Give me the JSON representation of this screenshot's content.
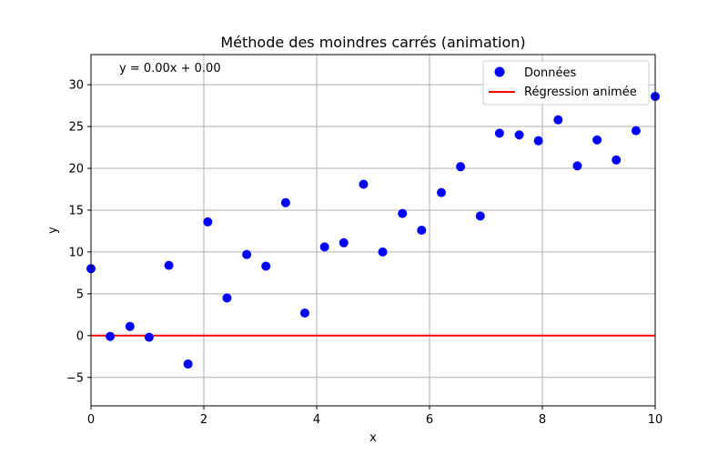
{
  "chart_data": {
    "type": "scatter",
    "title": "Méthode des moindres carrés (animation)",
    "xlabel": "x",
    "ylabel": "y",
    "xlim": [
      0,
      10
    ],
    "ylim": [
      -8.4,
      33.6
    ],
    "xticks": [
      0,
      2,
      4,
      6,
      8,
      10
    ],
    "yticks": [
      -5,
      0,
      5,
      10,
      15,
      20,
      25,
      30
    ],
    "grid": true,
    "legend_position": "top-right",
    "annotation": "y = 0.00x + 0.00",
    "series": [
      {
        "name": "Données",
        "kind": "scatter",
        "color": "#0000ff",
        "points": [
          [
            0.0,
            8.0
          ],
          [
            0.34,
            -0.1
          ],
          [
            0.69,
            1.1
          ],
          [
            1.03,
            -0.2
          ],
          [
            1.38,
            8.4
          ],
          [
            1.72,
            -3.4
          ],
          [
            2.07,
            13.6
          ],
          [
            2.41,
            4.5
          ],
          [
            2.76,
            9.7
          ],
          [
            3.1,
            8.3
          ],
          [
            3.45,
            15.9
          ],
          [
            3.79,
            2.7
          ],
          [
            4.14,
            10.6
          ],
          [
            4.48,
            11.1
          ],
          [
            4.83,
            18.1
          ],
          [
            5.17,
            10.0
          ],
          [
            5.52,
            14.6
          ],
          [
            5.86,
            12.6
          ],
          [
            6.21,
            17.1
          ],
          [
            6.55,
            20.2
          ],
          [
            6.9,
            14.3
          ],
          [
            7.24,
            24.2
          ],
          [
            7.59,
            24.0
          ],
          [
            7.93,
            23.3
          ],
          [
            8.28,
            25.8
          ],
          [
            8.62,
            20.3
          ],
          [
            8.97,
            23.4
          ],
          [
            9.31,
            21.0
          ],
          [
            9.66,
            24.5
          ],
          [
            10.0,
            28.6
          ]
        ]
      },
      {
        "name": "Régression animée",
        "kind": "line",
        "color": "#ff0000",
        "points": [
          [
            0,
            0
          ],
          [
            10,
            0
          ]
        ]
      }
    ]
  }
}
